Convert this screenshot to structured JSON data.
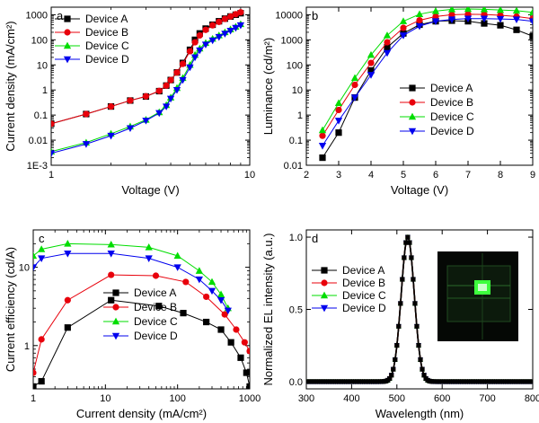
{
  "chart_data": [
    {
      "panel_letter": "a",
      "type": "line",
      "xlabel": "Voltage (V)",
      "ylabel": "Current density (mA/cm²)",
      "xscale": "log",
      "yscale": "log",
      "xlim": [
        1,
        10
      ],
      "ylim": [
        0.001,
        2000
      ],
      "xticks": [
        {
          "v": 1,
          "label": "1"
        },
        {
          "v": 10,
          "label": "10"
        }
      ],
      "yticks": [
        {
          "v": 0.001,
          "label": "1E-3"
        },
        {
          "v": 0.01,
          "label": "0.01"
        },
        {
          "v": 0.1,
          "label": "0.1"
        },
        {
          "v": 1,
          "label": "1"
        },
        {
          "v": 10,
          "label": "10"
        },
        {
          "v": 100,
          "label": "100"
        },
        {
          "v": 1000,
          "label": "1000"
        }
      ],
      "legend_position": "top-left",
      "series": [
        {
          "name": "Device A",
          "color": "#000000",
          "marker": "square",
          "x": [
            1.0,
            1.5,
            2.0,
            2.5,
            3.0,
            3.5,
            3.8,
            4.0,
            4.3,
            4.6,
            5.0,
            5.3,
            5.6,
            6.0,
            6.5,
            7.0,
            7.5,
            8.0,
            8.5,
            9.0
          ],
          "y": [
            0.045,
            0.11,
            0.22,
            0.38,
            0.55,
            0.9,
            1.5,
            2.5,
            5,
            12,
            40,
            100,
            180,
            280,
            400,
            550,
            700,
            850,
            1000,
            1150
          ]
        },
        {
          "name": "Device B",
          "color": "#e8000b",
          "marker": "circle",
          "x": [
            1.0,
            1.5,
            2.0,
            2.5,
            3.0,
            3.5,
            3.8,
            4.0,
            4.3,
            4.6,
            5.0,
            5.3,
            5.6,
            6.0,
            6.5,
            7.0,
            7.5,
            8.0,
            8.5,
            9.0
          ],
          "y": [
            0.045,
            0.11,
            0.22,
            0.38,
            0.56,
            0.92,
            1.5,
            2.5,
            5,
            11,
            35,
            80,
            150,
            250,
            380,
            520,
            680,
            850,
            1050,
            1250
          ]
        },
        {
          "name": "Device C",
          "color": "#00dd00",
          "marker": "triangle-up",
          "x": [
            1.0,
            1.5,
            2.0,
            2.5,
            3.0,
            3.5,
            3.8,
            4.0,
            4.3,
            4.6,
            5.0,
            5.3,
            5.6,
            6.0,
            6.5,
            7.0,
            7.5,
            8.0,
            8.5,
            9.0
          ],
          "y": [
            0.0035,
            0.008,
            0.018,
            0.035,
            0.065,
            0.13,
            0.25,
            0.5,
            1.2,
            3,
            10,
            25,
            45,
            75,
            110,
            150,
            200,
            260,
            330,
            420
          ]
        },
        {
          "name": "Device D",
          "color": "#0000ee",
          "marker": "triangle-down",
          "x": [
            1.0,
            1.5,
            2.0,
            2.5,
            3.0,
            3.5,
            3.8,
            4.0,
            4.3,
            4.6,
            5.0,
            5.3,
            5.6,
            6.0,
            6.5,
            7.0,
            7.5,
            8.0,
            8.5,
            9.0
          ],
          "y": [
            0.003,
            0.007,
            0.015,
            0.03,
            0.06,
            0.12,
            0.22,
            0.45,
            1.0,
            2.5,
            8,
            20,
            38,
            65,
            95,
            130,
            175,
            230,
            300,
            380
          ]
        }
      ]
    },
    {
      "panel_letter": "b",
      "type": "line",
      "xlabel": "Voltage (V)",
      "ylabel": "Luminance (cd/m²)",
      "xscale": "linear",
      "yscale": "log",
      "xlim": [
        2,
        9
      ],
      "ylim": [
        0.01,
        20000
      ],
      "xticks": [
        {
          "v": 2,
          "label": "2"
        },
        {
          "v": 3,
          "label": "3"
        },
        {
          "v": 4,
          "label": "4"
        },
        {
          "v": 5,
          "label": "5"
        },
        {
          "v": 6,
          "label": "6"
        },
        {
          "v": 7,
          "label": "7"
        },
        {
          "v": 8,
          "label": "8"
        },
        {
          "v": 9,
          "label": "9"
        }
      ],
      "yticks": [
        {
          "v": 0.01,
          "label": "0.01"
        },
        {
          "v": 0.1,
          "label": "0.1"
        },
        {
          "v": 1,
          "label": "1"
        },
        {
          "v": 10,
          "label": "10"
        },
        {
          "v": 100,
          "label": "100"
        },
        {
          "v": 1000,
          "label": "1000"
        },
        {
          "v": 10000,
          "label": "10000"
        }
      ],
      "legend_position": "bottom-right",
      "series": [
        {
          "name": "Device A",
          "color": "#000000",
          "marker": "square",
          "x": [
            2.5,
            3.0,
            3.5,
            4.0,
            4.5,
            5.0,
            5.5,
            6.0,
            6.5,
            7.0,
            7.5,
            8.0,
            8.5,
            9.0
          ],
          "y": [
            0.02,
            0.2,
            5,
            60,
            500,
            1800,
            4000,
            5500,
            5800,
            5500,
            4500,
            3800,
            2500,
            1400
          ]
        },
        {
          "name": "Device B",
          "color": "#e8000b",
          "marker": "circle",
          "x": [
            2.5,
            3.0,
            3.5,
            4.0,
            4.5,
            5.0,
            5.5,
            6.0,
            6.5,
            7.0,
            7.5,
            8.0,
            8.5,
            9.0
          ],
          "y": [
            0.15,
            1.6,
            16,
            120,
            800,
            3000,
            6000,
            8500,
            10000,
            10500,
            10200,
            9500,
            8500,
            7000
          ]
        },
        {
          "name": "Device C",
          "color": "#00dd00",
          "marker": "triangle-up",
          "x": [
            2.5,
            3.0,
            3.5,
            4.0,
            4.5,
            5.0,
            5.5,
            6.0,
            6.5,
            7.0,
            7.5,
            8.0,
            8.5,
            9.0
          ],
          "y": [
            0.25,
            3,
            30,
            250,
            1500,
            5500,
            10500,
            14000,
            16500,
            17000,
            16500,
            15500,
            14500,
            12500
          ]
        },
        {
          "name": "Device D",
          "color": "#0000ee",
          "marker": "triangle-down",
          "x": [
            2.5,
            3.0,
            3.5,
            4.0,
            4.5,
            5.0,
            5.5,
            6.0,
            6.5,
            7.0,
            7.5,
            8.0,
            8.5,
            9.0
          ],
          "y": [
            0.06,
            0.6,
            5,
            40,
            300,
            1500,
            3500,
            5500,
            6500,
            7000,
            7000,
            6800,
            6500,
            5500
          ]
        }
      ]
    },
    {
      "panel_letter": "c",
      "type": "line",
      "xlabel": "Current density (mA/cm²)",
      "ylabel": "Current efficiency (cd/A)",
      "xscale": "log",
      "yscale": "log",
      "xlim": [
        1,
        1000
      ],
      "ylim": [
        0.28,
        30
      ],
      "xticks": [
        {
          "v": 1,
          "label": "1"
        },
        {
          "v": 10,
          "label": "10"
        },
        {
          "v": 100,
          "label": "100"
        },
        {
          "v": 1000,
          "label": "1000"
        }
      ],
      "yticks": [
        {
          "v": 1,
          "label": "1"
        },
        {
          "v": 10,
          "label": "10"
        }
      ],
      "legend_position": "center",
      "series": [
        {
          "name": "Device A",
          "color": "#000000",
          "marker": "square",
          "x": [
            1.0,
            1.3,
            3.0,
            12,
            55,
            120,
            250,
            400,
            550,
            750,
            900,
            1000
          ],
          "y": [
            0.3,
            0.35,
            1.7,
            3.8,
            3.2,
            2.6,
            2.0,
            1.6,
            1.1,
            0.7,
            0.45,
            0.3
          ]
        },
        {
          "name": "Device B",
          "color": "#e8000b",
          "marker": "circle",
          "x": [
            1.0,
            1.3,
            3.0,
            12,
            50,
            130,
            250,
            450,
            650,
            850,
            1000
          ],
          "y": [
            0.45,
            1.2,
            3.8,
            8.0,
            7.8,
            6.5,
            4.2,
            2.5,
            1.6,
            1.1,
            0.85
          ]
        },
        {
          "name": "Device C",
          "color": "#00dd00",
          "marker": "triangle-up",
          "x": [
            1.0,
            1.3,
            3.0,
            12,
            40,
            100,
            200,
            300,
            400,
            500
          ],
          "y": [
            14,
            17,
            20,
            19.5,
            18,
            14,
            9,
            6.5,
            4.5,
            3.0
          ]
        },
        {
          "name": "Device D",
          "color": "#0000ee",
          "marker": "triangle-down",
          "x": [
            1.0,
            1.3,
            3.0,
            12,
            40,
            100,
            200,
            300,
            400,
            500
          ],
          "y": [
            10,
            13,
            15,
            15,
            13,
            10,
            7,
            5,
            3.8,
            2.8
          ]
        }
      ]
    },
    {
      "panel_letter": "d",
      "type": "line",
      "xlabel": "Wavelength (nm)",
      "ylabel": "Normalized EL intensity (a.u.)",
      "xscale": "linear",
      "yscale": "linear",
      "xlim": [
        300,
        800
      ],
      "ylim": [
        -0.05,
        1.05
      ],
      "xticks": [
        {
          "v": 300,
          "label": "300"
        },
        {
          "v": 400,
          "label": "400"
        },
        {
          "v": 500,
          "label": "500"
        },
        {
          "v": 600,
          "label": "600"
        },
        {
          "v": 700,
          "label": "700"
        },
        {
          "v": 800,
          "label": "800"
        }
      ],
      "yticks": [
        {
          "v": 0.0,
          "label": "0.0"
        },
        {
          "v": 0.5,
          "label": "0.5"
        },
        {
          "v": 1.0,
          "label": "1.0"
        }
      ],
      "legend_position": "center-left",
      "peak_nm": 524,
      "fwhm_nm": 34,
      "inset": "photograph of the emitting device (green pixel)",
      "series": [
        {
          "name": "Device A",
          "color": "#000000",
          "marker": "square"
        },
        {
          "name": "Device B",
          "color": "#e8000b",
          "marker": "circle"
        },
        {
          "name": "Device C",
          "color": "#00dd00",
          "marker": "triangle-up"
        },
        {
          "name": "Device D",
          "color": "#0000ee",
          "marker": "triangle-down"
        }
      ]
    }
  ]
}
